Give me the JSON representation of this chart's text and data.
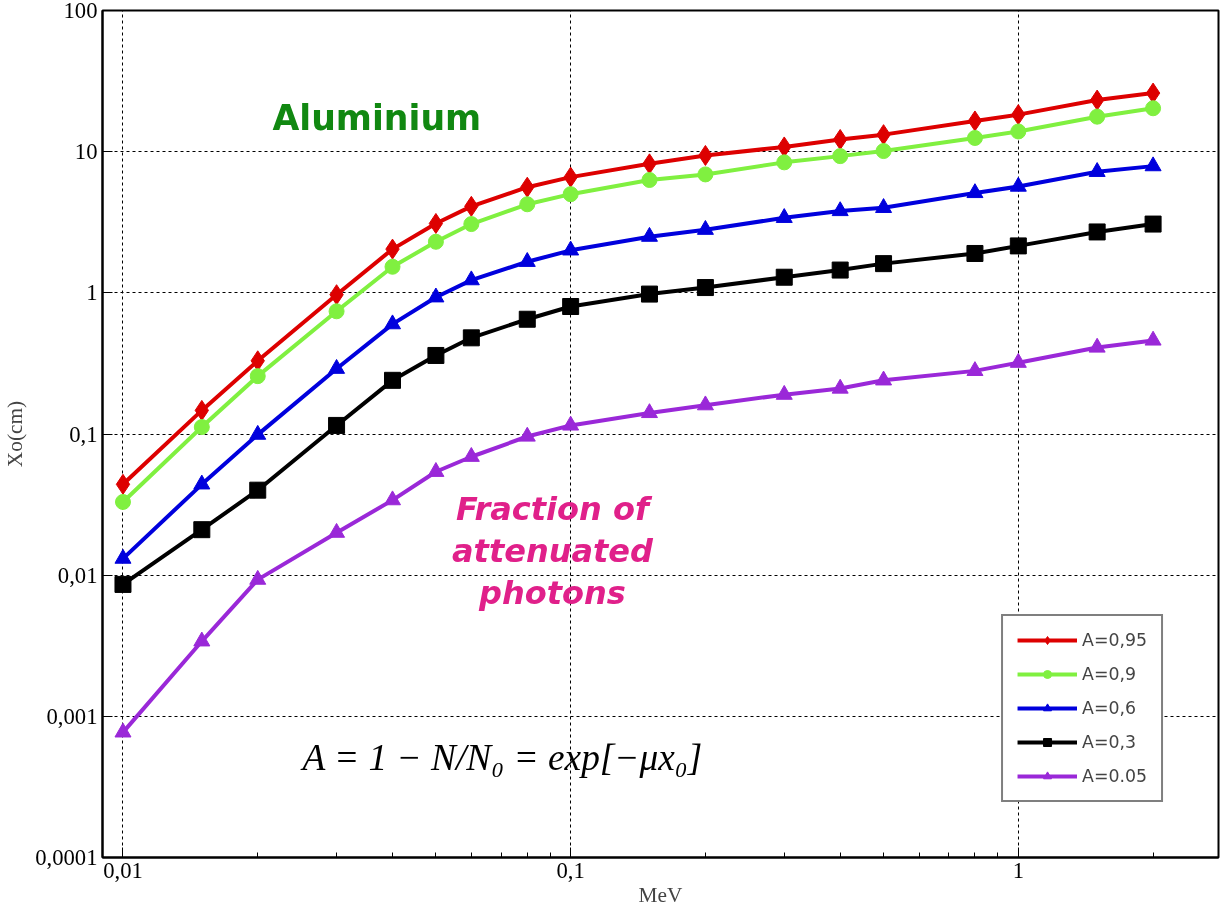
{
  "chart_data": {
    "type": "line",
    "xlabel": "MeV",
    "ylabel": "Xo(cm)",
    "log": "xy",
    "grid": true,
    "legend": "bottom right",
    "x": [
      0.01,
      0.015,
      0.02,
      0.03,
      0.04,
      0.05,
      0.06,
      0.08,
      0.1,
      0.15,
      0.2,
      0.3,
      0.4,
      0.5,
      0.8,
      1,
      1.5,
      2
    ],
    "xlim": [
      0.009,
      2.8
    ],
    "ylim": [
      0.0001,
      100
    ],
    "xticks": [
      {
        "value": 0.01,
        "label": "0,01"
      },
      {
        "value": 0.1,
        "label": "0,1"
      },
      1
    ],
    "yticks": [
      {
        "value": 0.0001,
        "label": "0,0001"
      },
      {
        "value": 0.001,
        "label": "0,001"
      },
      {
        "value": 0.01,
        "label": "0,01"
      },
      {
        "value": 0.1,
        "label": "0,1"
      },
      1,
      10,
      100
    ],
    "annotations": [
      "Aluminium",
      "Fraction of attenuated photons",
      "A = 1 − N/N₀ = exp[−μx₀]"
    ],
    "series": [
      {
        "name": "A=0,95",
        "color": "#dd0000",
        "marker": "diamond",
        "values": [
          0.044,
          0.147,
          0.33,
          0.97,
          2.04,
          3.1,
          4.1,
          5.6,
          6.6,
          8.2,
          9.4,
          10.8,
          12.2,
          13.2,
          16.5,
          18.3,
          23.2,
          26
        ]
      },
      {
        "name": "A=0,9",
        "color": "#80f040",
        "marker": "circle",
        "values": [
          0.033,
          0.112,
          0.257,
          0.74,
          1.53,
          2.3,
          3.07,
          4.24,
          5.0,
          6.3,
          6.9,
          8.4,
          9.3,
          10.1,
          12.5,
          13.9,
          17.7,
          20.3
        ]
      },
      {
        "name": "A=0,6",
        "color": "#0000dd",
        "marker": "triangle",
        "values": [
          0.0131,
          0.044,
          0.099,
          0.29,
          0.6,
          0.93,
          1.23,
          1.66,
          2.0,
          2.5,
          2.8,
          3.4,
          3.8,
          4.0,
          5.1,
          5.66,
          7.2,
          7.9
        ]
      },
      {
        "name": "A=0,3",
        "color": "#000000",
        "marker": "square",
        "values": [
          0.0086,
          0.021,
          0.04,
          0.115,
          0.24,
          0.36,
          0.48,
          0.65,
          0.8,
          0.98,
          1.09,
          1.29,
          1.45,
          1.61,
          1.9,
          2.15,
          2.7,
          3.07
        ]
      },
      {
        "name": "A=0.05",
        "color": "#9a28d8",
        "marker": "triangle",
        "values": [
          0.00077,
          0.0034,
          0.0093,
          0.02,
          0.034,
          0.054,
          0.069,
          0.096,
          0.115,
          0.141,
          0.16,
          0.19,
          0.21,
          0.24,
          0.28,
          0.32,
          0.41,
          0.46
        ]
      }
    ]
  }
}
